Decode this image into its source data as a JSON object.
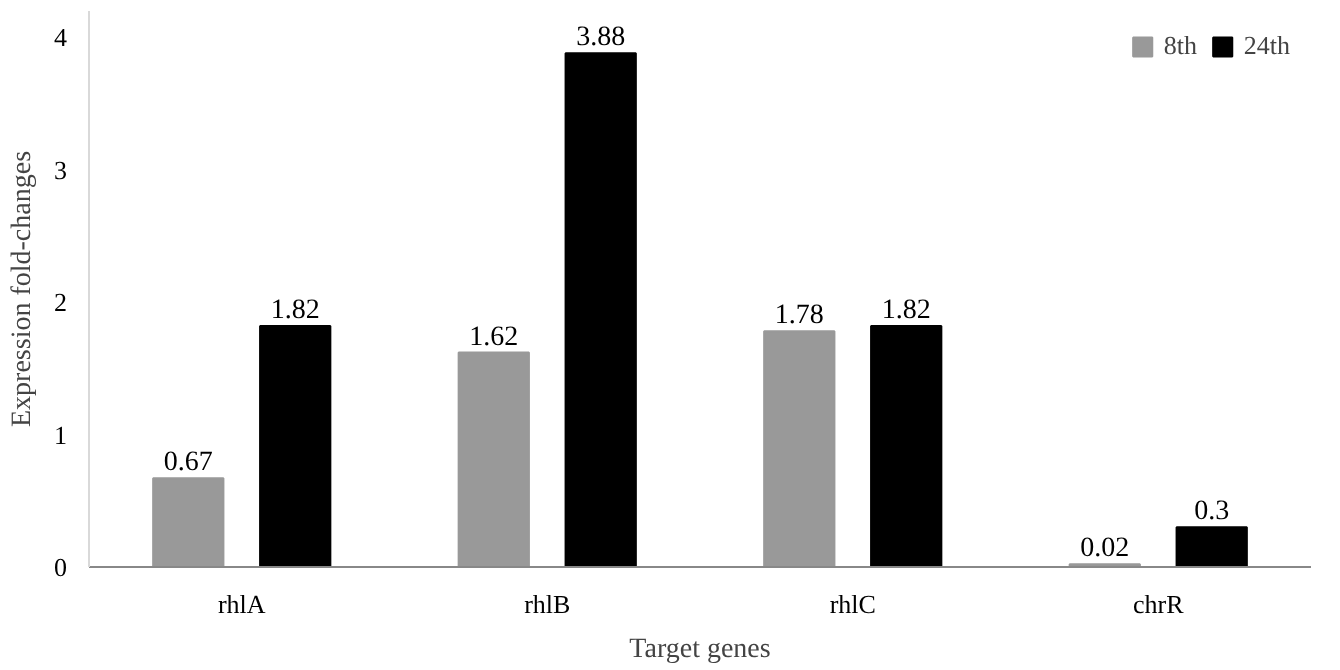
{
  "chart_data": {
    "type": "bar",
    "xlabel": "Target genes",
    "ylabel": "Expression fold-changes",
    "categories": [
      "rhlA",
      "rhlB",
      "rhlC",
      "chrR"
    ],
    "series": [
      {
        "name": "8th",
        "color": "#999999",
        "values": [
          0.67,
          1.62,
          1.78,
          0.02
        ]
      },
      {
        "name": "24th",
        "color": "#000000",
        "values": [
          1.82,
          3.88,
          1.82,
          0.3
        ]
      }
    ],
    "ylim": [
      0,
      4.2
    ],
    "yticks": [
      0,
      1,
      2,
      3,
      4
    ],
    "grid": false,
    "legend": "top right",
    "data_labels": true
  }
}
